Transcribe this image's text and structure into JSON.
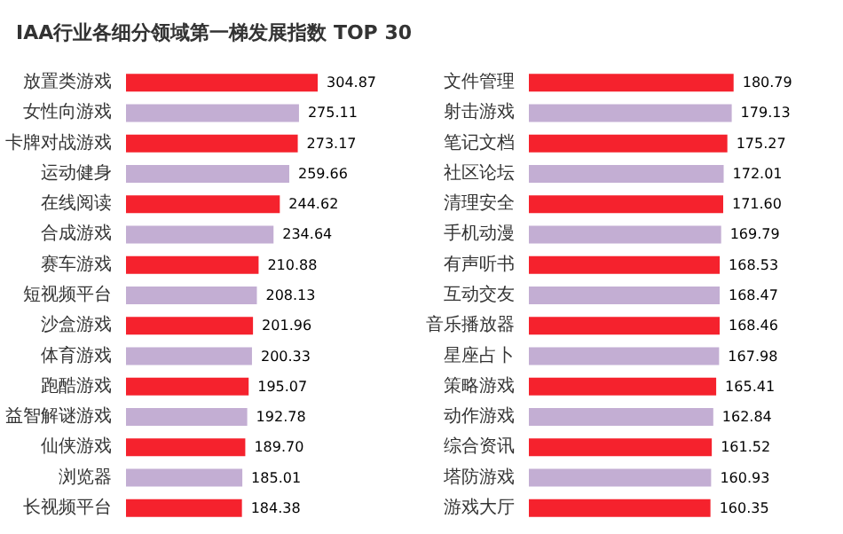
{
  "chart_data": [
    {
      "type": "bar",
      "orientation": "horizontal",
      "title": "IAA行业各细分领域第一梯发展指数 TOP 30",
      "categories": [
        "放置类游戏",
        "女性向游戏",
        "卡牌对战游戏",
        "运动健身",
        "在线阅读",
        "合成游戏",
        "赛车游戏",
        "短视频平台",
        "沙盒游戏",
        "体育游戏",
        "跑酷游戏",
        "益智解谜游戏",
        "仙侠游戏",
        "浏览器",
        "长视频平台"
      ],
      "values": [
        304.87,
        275.11,
        273.17,
        259.66,
        244.62,
        234.64,
        210.88,
        208.13,
        201.96,
        200.33,
        195.07,
        192.78,
        189.7,
        185.01,
        184.38
      ],
      "value_labels": [
        "304.87",
        "275.11",
        "273.17",
        "259.66",
        "244.62",
        "234.64",
        "210.88",
        "208.13",
        "201.96",
        "200.33",
        "195.07",
        "192.78",
        "189.70",
        "185.01",
        "184.38"
      ],
      "colors": [
        "#f5222d",
        "#c3aed3",
        "#f5222d",
        "#c3aed3",
        "#f5222d",
        "#c3aed3",
        "#f5222d",
        "#c3aed3",
        "#f5222d",
        "#c3aed3",
        "#f5222d",
        "#c3aed3",
        "#f5222d",
        "#c3aed3",
        "#f5222d"
      ]
    },
    {
      "type": "bar",
      "orientation": "horizontal",
      "categories": [
        "文件管理",
        "射击游戏",
        "笔记文档",
        "社区论坛",
        "清理安全",
        "手机动漫",
        "有声听书",
        "互动交友",
        "音乐播放器",
        "星座占卜",
        "策略游戏",
        "动作游戏",
        "综合资讯",
        "塔防游戏",
        "游戏大厅"
      ],
      "values": [
        180.79,
        179.13,
        175.27,
        172.01,
        171.6,
        169.79,
        168.53,
        168.47,
        168.46,
        167.98,
        165.41,
        162.84,
        161.52,
        160.93,
        160.35
      ],
      "value_labels": [
        "180.79",
        "179.13",
        "175.27",
        "172.01",
        "171.60",
        "169.79",
        "168.53",
        "168.47",
        "168.46",
        "167.98",
        "165.41",
        "162.84",
        "161.52",
        "160.93",
        "160.35"
      ],
      "colors": [
        "#f5222d",
        "#c3aed3",
        "#f5222d",
        "#c3aed3",
        "#f5222d",
        "#c3aed3",
        "#f5222d",
        "#c3aed3",
        "#f5222d",
        "#c3aed3",
        "#f5222d",
        "#c3aed3",
        "#f5222d",
        "#c3aed3",
        "#f5222d"
      ]
    }
  ]
}
